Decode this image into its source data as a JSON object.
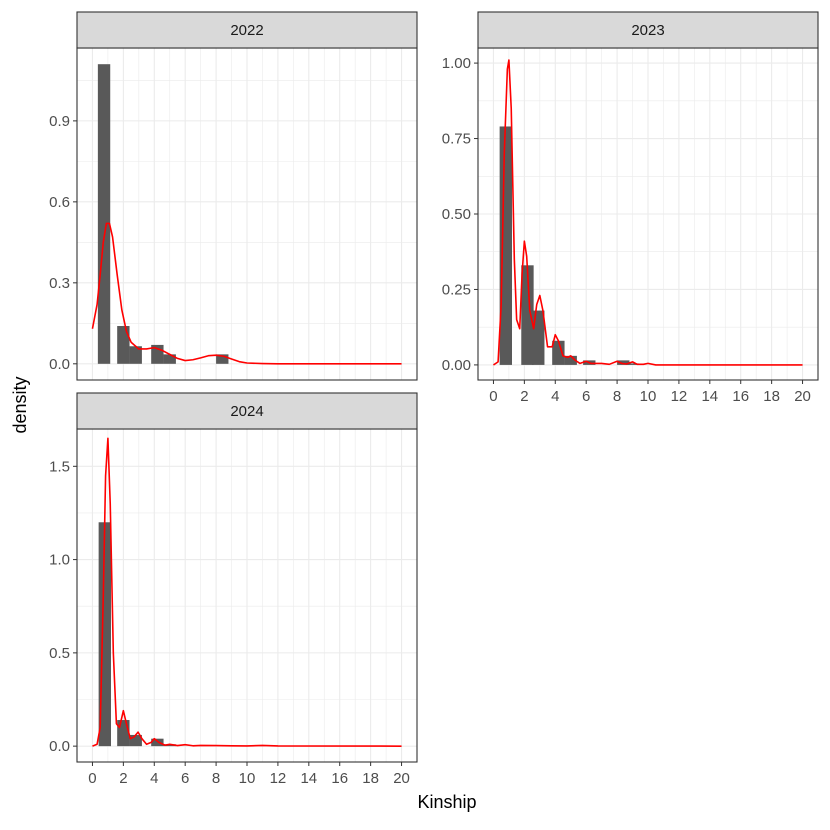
{
  "chart_data": {
    "type": "bar",
    "facet_layout": "wrap",
    "xlabel": "Kinship",
    "ylabel": "density",
    "xlim": [
      -1,
      21
    ],
    "x_ticks": [
      "0",
      "2",
      "4",
      "6",
      "8",
      "10",
      "12",
      "14",
      "16",
      "18",
      "20"
    ],
    "grid": true,
    "bar_width": 0.8,
    "colors": {
      "bar": "#595959",
      "density_line": "#ff0000",
      "strip_fill": "#d9d9d9",
      "grid": "#ebebeb",
      "panel_border": "#333333"
    },
    "panels": [
      {
        "facet": "2022",
        "ylim": [
          -0.06,
          1.17
        ],
        "y_ticks": [
          "0.0",
          "0.3",
          "0.6",
          "0.9"
        ],
        "y_tick_values": [
          0,
          0.3,
          0.6,
          0.9
        ],
        "bars": [
          {
            "x": 0.75,
            "y": 1.11
          },
          {
            "x": 2.0,
            "y": 0.14
          },
          {
            "x": 2.8,
            "y": 0.065
          },
          {
            "x": 4.2,
            "y": 0.07
          },
          {
            "x": 5.0,
            "y": 0.035
          },
          {
            "x": 8.4,
            "y": 0.035
          }
        ],
        "density": [
          [
            0,
            0.13
          ],
          [
            0.3,
            0.22
          ],
          [
            0.5,
            0.33
          ],
          [
            0.7,
            0.45
          ],
          [
            0.9,
            0.52
          ],
          [
            1.1,
            0.52
          ],
          [
            1.3,
            0.47
          ],
          [
            1.6,
            0.33
          ],
          [
            1.9,
            0.2
          ],
          [
            2.2,
            0.12
          ],
          [
            2.5,
            0.08
          ],
          [
            3.0,
            0.055
          ],
          [
            3.5,
            0.055
          ],
          [
            4.0,
            0.06
          ],
          [
            4.5,
            0.05
          ],
          [
            5.0,
            0.035
          ],
          [
            5.5,
            0.02
          ],
          [
            6.0,
            0.012
          ],
          [
            6.5,
            0.015
          ],
          [
            7.0,
            0.022
          ],
          [
            7.5,
            0.03
          ],
          [
            8.0,
            0.032
          ],
          [
            8.5,
            0.028
          ],
          [
            9.0,
            0.018
          ],
          [
            9.5,
            0.008
          ],
          [
            10.0,
            0.003
          ],
          [
            11.0,
            0.001
          ],
          [
            12.0,
            0
          ],
          [
            20.0,
            0
          ]
        ]
      },
      {
        "facet": "2023",
        "ylim": [
          -0.05,
          1.05
        ],
        "y_ticks": [
          "0.00",
          "0.25",
          "0.50",
          "0.75",
          "1.00"
        ],
        "y_tick_values": [
          0,
          0.25,
          0.5,
          0.75,
          1.0
        ],
        "bars": [
          {
            "x": 0.8,
            "y": 0.79
          },
          {
            "x": 2.2,
            "y": 0.33
          },
          {
            "x": 2.9,
            "y": 0.18
          },
          {
            "x": 4.2,
            "y": 0.08
          },
          {
            "x": 5.0,
            "y": 0.03
          },
          {
            "x": 6.2,
            "y": 0.015
          },
          {
            "x": 8.4,
            "y": 0.015
          },
          {
            "x": 9.0,
            "y": 0.005
          }
        ],
        "density": [
          [
            0,
            0
          ],
          [
            0.3,
            0.01
          ],
          [
            0.5,
            0.2
          ],
          [
            0.7,
            0.7
          ],
          [
            0.9,
            0.98
          ],
          [
            1.0,
            1.01
          ],
          [
            1.15,
            0.85
          ],
          [
            1.35,
            0.35
          ],
          [
            1.5,
            0.15
          ],
          [
            1.7,
            0.12
          ],
          [
            1.85,
            0.3
          ],
          [
            2.0,
            0.41
          ],
          [
            2.15,
            0.36
          ],
          [
            2.35,
            0.18
          ],
          [
            2.6,
            0.12
          ],
          [
            2.8,
            0.2
          ],
          [
            3.0,
            0.23
          ],
          [
            3.2,
            0.18
          ],
          [
            3.5,
            0.06
          ],
          [
            3.8,
            0.06
          ],
          [
            4.0,
            0.1
          ],
          [
            4.2,
            0.08
          ],
          [
            4.5,
            0.03
          ],
          [
            4.8,
            0.025
          ],
          [
            5.0,
            0.03
          ],
          [
            5.3,
            0.015
          ],
          [
            5.6,
            0.005
          ],
          [
            6.0,
            0.012
          ],
          [
            6.3,
            0.005
          ],
          [
            7.0,
            0.005
          ],
          [
            7.5,
            0.002
          ],
          [
            8.0,
            0.012
          ],
          [
            8.3,
            0.005
          ],
          [
            8.6,
            0.003
          ],
          [
            9.0,
            0.01
          ],
          [
            9.3,
            0.002
          ],
          [
            9.7,
            0.002
          ],
          [
            10.0,
            0.005
          ],
          [
            10.5,
            0
          ],
          [
            20.0,
            0
          ]
        ]
      },
      {
        "facet": "2024",
        "ylim": [
          -0.085,
          1.7
        ],
        "y_ticks": [
          "0.0",
          "0.5",
          "1.0",
          "1.5"
        ],
        "y_tick_values": [
          0,
          0.5,
          1.0,
          1.5
        ],
        "bars": [
          {
            "x": 0.8,
            "y": 1.2
          },
          {
            "x": 2.0,
            "y": 0.14
          },
          {
            "x": 2.8,
            "y": 0.06
          },
          {
            "x": 4.2,
            "y": 0.04
          },
          {
            "x": 5.0,
            "y": 0.01
          }
        ],
        "density": [
          [
            0,
            0
          ],
          [
            0.3,
            0.01
          ],
          [
            0.5,
            0.1
          ],
          [
            0.7,
            0.8
          ],
          [
            0.85,
            1.45
          ],
          [
            1.0,
            1.65
          ],
          [
            1.15,
            1.3
          ],
          [
            1.35,
            0.5
          ],
          [
            1.55,
            0.12
          ],
          [
            1.75,
            0.1
          ],
          [
            2.0,
            0.19
          ],
          [
            2.2,
            0.12
          ],
          [
            2.45,
            0.04
          ],
          [
            2.7,
            0.05
          ],
          [
            2.95,
            0.075
          ],
          [
            3.2,
            0.04
          ],
          [
            3.5,
            0.01
          ],
          [
            3.8,
            0.02
          ],
          [
            4.0,
            0.04
          ],
          [
            4.3,
            0.02
          ],
          [
            4.7,
            0.005
          ],
          [
            5.0,
            0.01
          ],
          [
            5.5,
            0.003
          ],
          [
            6.0,
            0.008
          ],
          [
            6.5,
            0.002
          ],
          [
            7.0,
            0.004
          ],
          [
            8.0,
            0.003
          ],
          [
            9.0,
            0.002
          ],
          [
            10.0,
            0.001
          ],
          [
            11.0,
            0.004
          ],
          [
            12.0,
            0.001
          ],
          [
            20.0,
            0
          ]
        ]
      }
    ]
  }
}
